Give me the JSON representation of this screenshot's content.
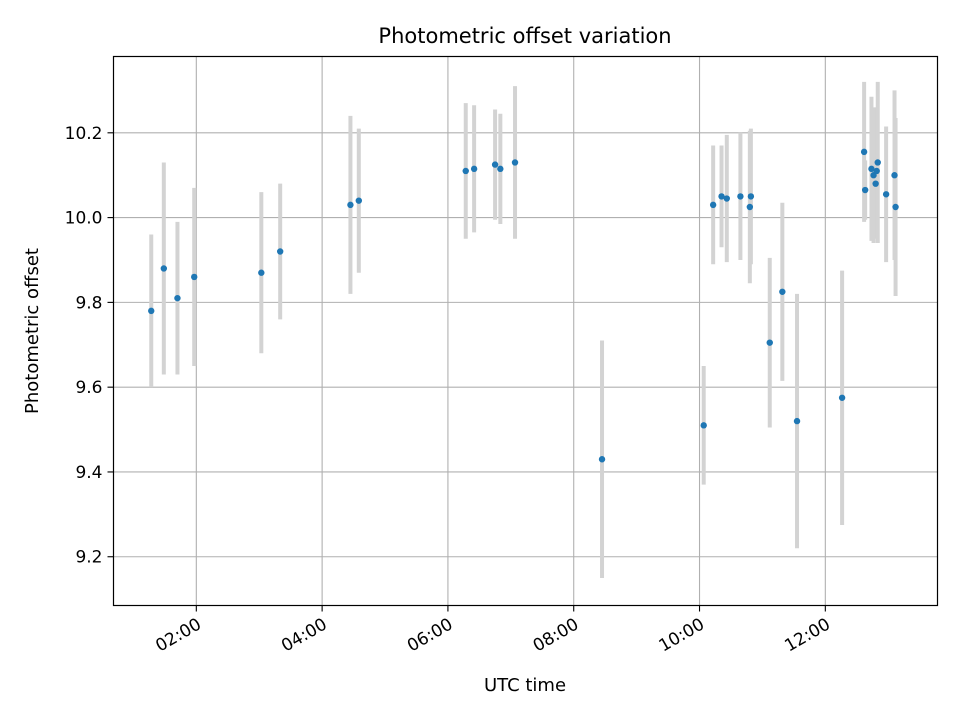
{
  "chart_data": {
    "type": "scatter",
    "title": "Photometric offset variation",
    "xlabel": "UTC time",
    "ylabel": "Photometric offset",
    "x_unit": "UTC time (HH:MM)",
    "xlim": [
      "00:41",
      "13:47"
    ],
    "ylim": [
      9.085,
      10.38
    ],
    "x_ticks": [
      "02:00",
      "04:00",
      "06:00",
      "08:00",
      "10:00",
      "12:00"
    ],
    "y_ticks": [
      9.2,
      9.4,
      9.6,
      9.8,
      10.0,
      10.2
    ],
    "y_tick_labels": [
      "9.2",
      "9.4",
      "9.6",
      "9.8",
      "10.0",
      "10.2"
    ],
    "grid": true,
    "colors": {
      "points": "#1f77b4",
      "errorbars": "#d3d3d3",
      "grid": "#b0b0b0"
    },
    "series": [
      {
        "points": [
          {
            "x": "01:17",
            "y": 9.78,
            "yerr": 0.18
          },
          {
            "x": "01:29",
            "y": 9.88,
            "yerr": 0.25
          },
          {
            "x": "01:42",
            "y": 9.81,
            "yerr": 0.18
          },
          {
            "x": "01:58",
            "y": 9.86,
            "yerr": 0.21
          },
          {
            "x": "03:02",
            "y": 9.87,
            "yerr": 0.19
          },
          {
            "x": "03:20",
            "y": 9.92,
            "yerr": 0.16
          },
          {
            "x": "04:27",
            "y": 10.03,
            "yerr": 0.21
          },
          {
            "x": "04:35",
            "y": 10.04,
            "yerr": 0.17
          },
          {
            "x": "06:17",
            "y": 10.11,
            "yerr": 0.16
          },
          {
            "x": "06:25",
            "y": 10.115,
            "yerr": 0.15
          },
          {
            "x": "06:45",
            "y": 10.125,
            "yerr": 0.13
          },
          {
            "x": "06:50",
            "y": 10.115,
            "yerr": 0.13
          },
          {
            "x": "07:04",
            "y": 10.13,
            "yerr": 0.18
          },
          {
            "x": "08:27",
            "y": 9.43,
            "yerr": 0.28
          },
          {
            "x": "10:04",
            "y": 9.51,
            "yerr": 0.14
          },
          {
            "x": "10:13",
            "y": 10.03,
            "yerr": 0.14
          },
          {
            "x": "10:21",
            "y": 10.05,
            "yerr": 0.12
          },
          {
            "x": "10:26",
            "y": 10.045,
            "yerr": 0.15
          },
          {
            "x": "10:39",
            "y": 10.05,
            "yerr": 0.15
          },
          {
            "x": "10:48",
            "y": 10.025,
            "yerr": 0.18
          },
          {
            "x": "10:49",
            "y": 10.05,
            "yerr": 0.16
          },
          {
            "x": "11:07",
            "y": 9.705,
            "yerr": 0.2
          },
          {
            "x": "11:19",
            "y": 9.825,
            "yerr": 0.21
          },
          {
            "x": "11:33",
            "y": 9.52,
            "yerr": 0.3
          },
          {
            "x": "12:16",
            "y": 9.575,
            "yerr": 0.3
          },
          {
            "x": "12:37",
            "y": 10.155,
            "yerr": 0.165
          },
          {
            "x": "12:38",
            "y": 10.065,
            "yerr": 0.07
          },
          {
            "x": "12:44",
            "y": 10.115,
            "yerr": 0.17
          },
          {
            "x": "12:46",
            "y": 10.1,
            "yerr": 0.16
          },
          {
            "x": "12:48",
            "y": 10.08,
            "yerr": 0.13
          },
          {
            "x": "12:49",
            "y": 10.11,
            "yerr": 0.15
          },
          {
            "x": "12:50",
            "y": 10.13,
            "yerr": 0.19
          },
          {
            "x": "12:58",
            "y": 10.055,
            "yerr": 0.16
          },
          {
            "x": "13:06",
            "y": 10.1,
            "yerr": 0.2
          },
          {
            "x": "13:07",
            "y": 10.025,
            "yerr": 0.21
          }
        ]
      }
    ]
  }
}
